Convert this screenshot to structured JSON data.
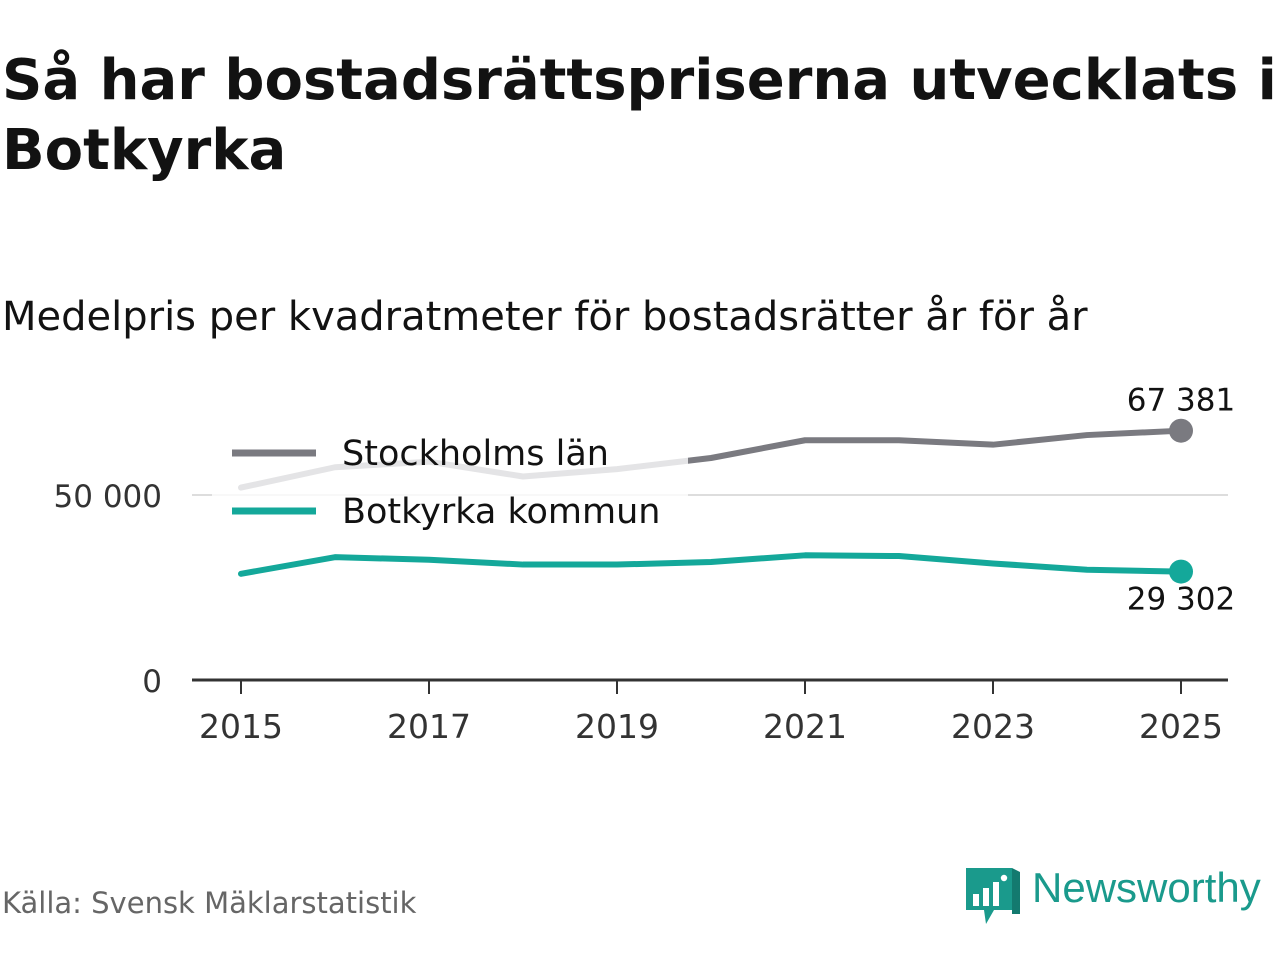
{
  "title": "Så har bostadsrättspriserna utvecklats i Botkyrka",
  "subtitle": "Medelpris per kvadratmeter för bostadsrätter år för år",
  "source": "Källa: Svensk Mäklarstatistik",
  "brand": "Newsworthy",
  "colors": {
    "stockholm": "#7a7a80",
    "botkyrka": "#14a89a",
    "grid": "#dddddd",
    "axis": "#333333",
    "legend_bg": "#ffffff"
  },
  "chart_data": {
    "type": "line",
    "title": "Så har bostadsrättspriserna utvecklats i Botkyrka",
    "subtitle": "Medelpris per kvadratmeter för bostadsrätter år för år",
    "xlabel": "",
    "ylabel": "",
    "x": [
      2015,
      2016,
      2017,
      2018,
      2019,
      2020,
      2021,
      2022,
      2023,
      2024,
      2025
    ],
    "xticks": [
      "2015",
      "2017",
      "2019",
      "2021",
      "2023",
      "2025"
    ],
    "yticks": [
      0,
      50000
    ],
    "ytick_labels": [
      "0",
      "50 000"
    ],
    "ylim": [
      0,
      74000
    ],
    "legend_position": "top-left",
    "series": [
      {
        "name": "Stockholms län",
        "color": "#7a7a80",
        "values": [
          52000,
          57500,
          59000,
          55000,
          57000,
          60000,
          64800,
          64800,
          63600,
          66200,
          67381
        ],
        "end_label": "67 381"
      },
      {
        "name": "Botkyrka kommun",
        "color": "#14a89a",
        "values": [
          28700,
          33200,
          32500,
          31200,
          31200,
          31900,
          33700,
          33500,
          31500,
          29800,
          29302
        ],
        "end_label": "29 302"
      }
    ]
  }
}
